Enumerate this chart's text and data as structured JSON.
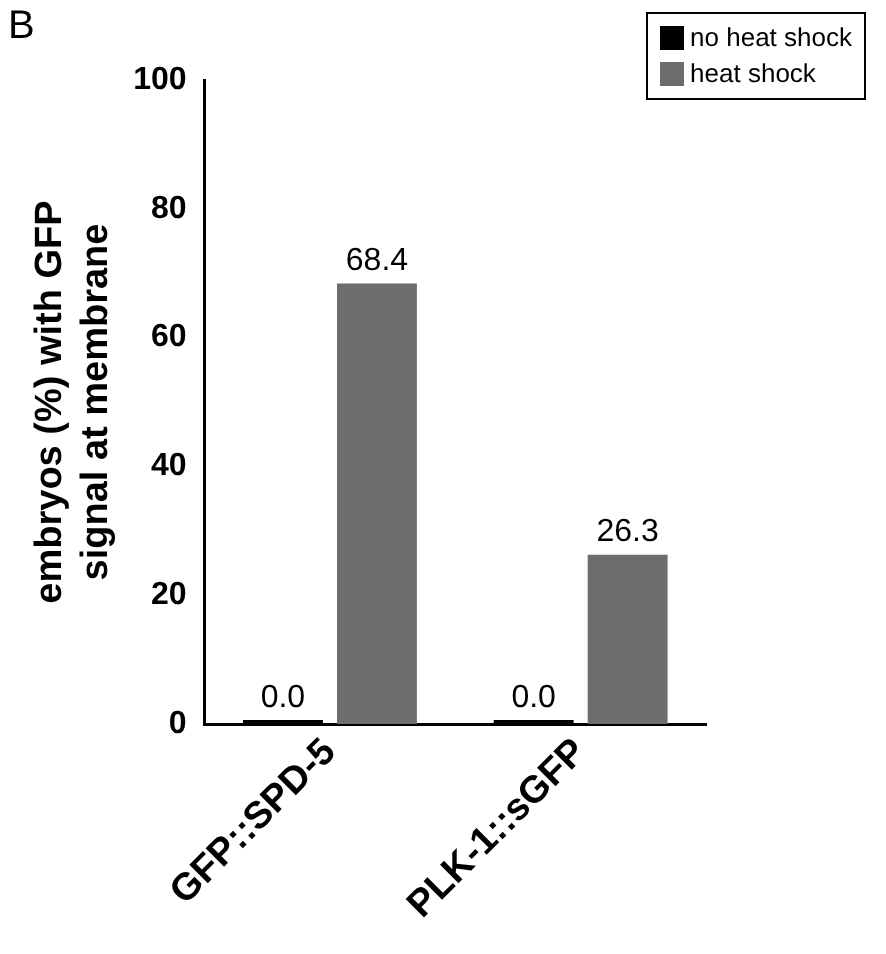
{
  "chart_data": {
    "type": "bar",
    "ylabel": "embryos (%) with GFP\nsignal at membrane",
    "categories": [
      "GFP::SPD-5",
      "PLK-1::sGFP"
    ],
    "series": [
      {
        "name": "no heat shock",
        "color": "#000000",
        "values": [
          0,
          0
        ],
        "value_labels": [
          "0.0",
          "0.0"
        ]
      },
      {
        "name": "heat shock",
        "color": "#6d6d6d",
        "values": [
          68.4,
          26.3
        ],
        "value_labels": [
          "68.4",
          "26.3"
        ]
      }
    ],
    "ylim": [
      0,
      100
    ],
    "yticks": [
      0,
      20,
      40,
      60,
      80,
      100
    ],
    "grid": false,
    "legend": "top right",
    "annotations": [
      "B"
    ]
  }
}
